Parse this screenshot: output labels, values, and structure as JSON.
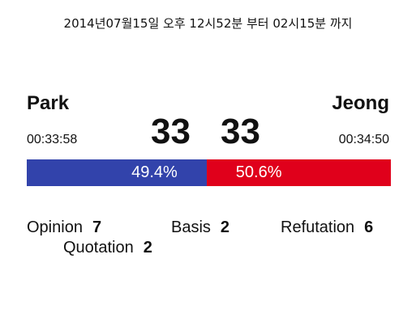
{
  "header": {
    "date_range": "2014년07월15일 오후 12시52분 부터 02시15분 까지"
  },
  "players": {
    "left": {
      "name": "Park",
      "time": "00:33:58",
      "score": "33",
      "percent_label": "49.4%",
      "percent": 49.4,
      "color": "#3243ab"
    },
    "right": {
      "name": "Jeong",
      "time": "00:34:50",
      "score": "33",
      "percent_label": "50.6%",
      "percent": 50.6,
      "color": "#e0001b"
    }
  },
  "stats": {
    "opinion": {
      "label": "Opinion",
      "value": "7"
    },
    "basis": {
      "label": "Basis",
      "value": "2"
    },
    "refutation": {
      "label": "Refutation",
      "value": "6"
    },
    "quotation": {
      "label": "Quotation",
      "value": "2"
    }
  }
}
